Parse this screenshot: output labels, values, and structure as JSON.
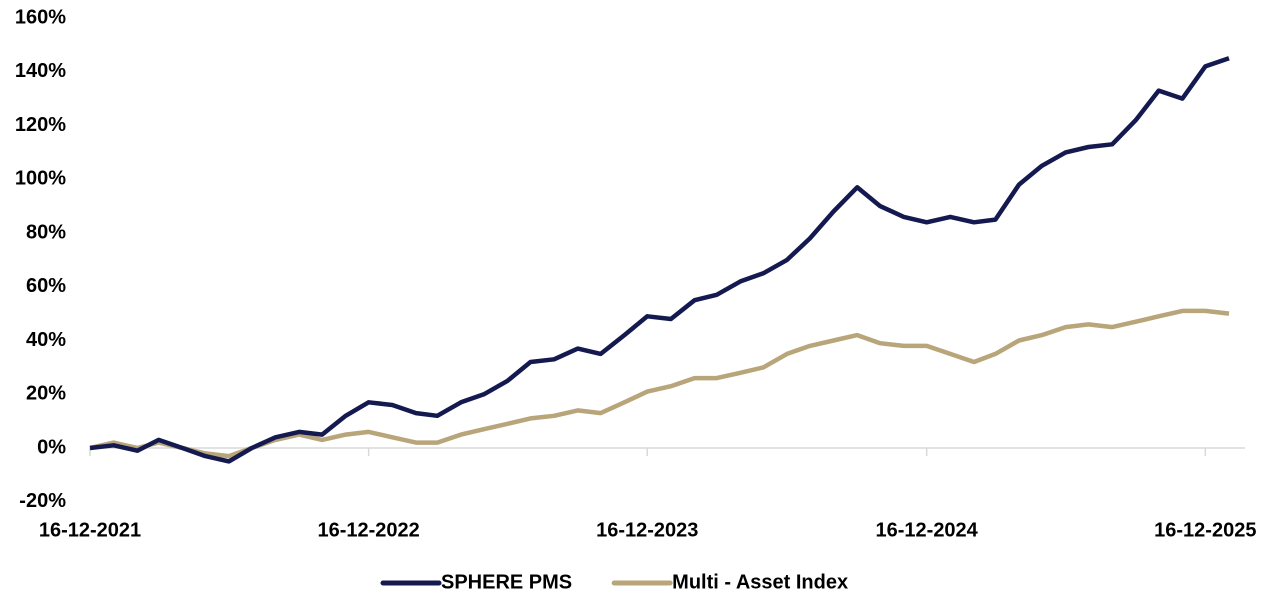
{
  "chart_data": {
    "type": "line",
    "x": [
      "16-12-2021",
      "16-01-2022",
      "16-02-2022",
      "16-03-2022",
      "16-04-2022",
      "16-05-2022",
      "16-06-2022",
      "16-07-2022",
      "16-08-2022",
      "16-09-2022",
      "16-10-2022",
      "16-11-2022",
      "16-12-2022",
      "16-01-2023",
      "16-02-2023",
      "16-03-2023",
      "16-04-2023",
      "16-05-2023",
      "16-06-2023",
      "16-07-2023",
      "16-08-2023",
      "16-09-2023",
      "16-10-2023",
      "16-11-2023",
      "16-12-2023",
      "16-01-2024",
      "16-02-2024",
      "16-03-2024",
      "16-04-2024",
      "16-05-2024",
      "16-06-2024",
      "16-07-2024",
      "16-08-2024",
      "16-09-2024",
      "16-10-2024",
      "16-11-2024",
      "16-12-2024",
      "16-01-2025",
      "16-02-2025",
      "16-03-2025",
      "16-04-2025",
      "16-05-2025",
      "16-06-2025",
      "16-07-2025",
      "16-08-2025",
      "16-09-2025",
      "16-10-2025",
      "16-11-2025",
      "16-12-2025",
      "16-01-2026"
    ],
    "series": [
      {
        "name": "SPHERE PMS",
        "color": "#141a4f",
        "values": [
          0,
          1,
          -1,
          3,
          0,
          -3,
          -5,
          0,
          4,
          6,
          5,
          12,
          17,
          16,
          13,
          12,
          17,
          20,
          25,
          32,
          33,
          37,
          35,
          42,
          49,
          48,
          55,
          57,
          62,
          65,
          70,
          78,
          88,
          97,
          90,
          86,
          84,
          86,
          84,
          85,
          98,
          105,
          110,
          112,
          113,
          122,
          133,
          130,
          142,
          145
        ]
      },
      {
        "name": "Multi - Asset Index",
        "color": "#b9a57a",
        "values": [
          0,
          2,
          0,
          2,
          0,
          -2,
          -3,
          0,
          3,
          5,
          3,
          5,
          6,
          4,
          2,
          2,
          5,
          7,
          9,
          11,
          12,
          14,
          13,
          17,
          21,
          23,
          26,
          26,
          28,
          30,
          35,
          38,
          40,
          42,
          39,
          38,
          38,
          35,
          32,
          35,
          40,
          42,
          45,
          46,
          45,
          47,
          49,
          51,
          51,
          50
        ]
      }
    ],
    "xlim": [
      "16-12-2021",
      "06-02-2026"
    ],
    "xticks": [
      "16-12-2021",
      "16-12-2022",
      "16-12-2023",
      "16-12-2024",
      "16-12-2025"
    ],
    "ylim": [
      -20,
      160
    ],
    "yticks": [
      {
        "value": -20,
        "label": "-20%"
      },
      {
        "value": 0,
        "label": "0%"
      },
      {
        "value": 20,
        "label": "20%"
      },
      {
        "value": 40,
        "label": "40%"
      },
      {
        "value": 60,
        "label": "60%"
      },
      {
        "value": 80,
        "label": "80%"
      },
      {
        "value": 100,
        "label": "100%"
      },
      {
        "value": 120,
        "label": "120%"
      },
      {
        "value": 140,
        "label": "140%"
      },
      {
        "value": 160,
        "label": "160%"
      }
    ],
    "legend": "bottom"
  }
}
